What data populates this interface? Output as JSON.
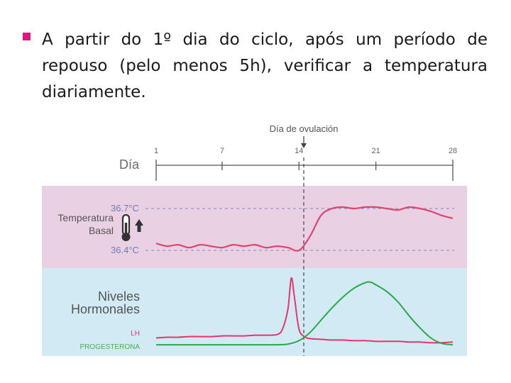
{
  "slide": {
    "bullet": "A partir do 1º dia do ciclo, após um período de repouso (pelo menos 5h), verificar a temperatura diariamente."
  },
  "colors": {
    "bullet": "#e5157f",
    "temp_band": "#ead0e3",
    "hormone_band": "#d1eaf3",
    "temperature_line": "#e0436b",
    "lh_line": "#e8336f",
    "progesterone_line": "#2aa84a",
    "reference_line": "#7f88c4",
    "axis_label": "#6f7bb8",
    "lh_label": "#e8336f",
    "progesterone_label": "#4caf50"
  },
  "figure": {
    "ovulation_label": "Día de ovulación",
    "day_label": "Día",
    "temp_label_line1": "Temperatura",
    "temp_label_line2": "Basal",
    "temp_high": "36.7°C",
    "temp_low": "36.4°C",
    "hormone_label_line1": "Niveles",
    "hormone_label_line2": "Hormonales",
    "lh_label": "LH",
    "progesterone_label": "PROGESTERONA",
    "thermometer_icon": "thermometer-up-icon"
  },
  "chart_data": {
    "type": "line",
    "x_axis": {
      "label": "Día",
      "ticks": [
        1,
        7,
        14,
        21,
        28
      ],
      "range": [
        1,
        28
      ]
    },
    "ovulation_day": 14,
    "series": [
      {
        "name": "Temperatura Basal",
        "unit": "°C",
        "reference_levels": [
          36.7,
          36.4
        ],
        "x": [
          1,
          2,
          3,
          4,
          5,
          6,
          7,
          8,
          9,
          10,
          11,
          12,
          13,
          14,
          15,
          16,
          17,
          18,
          19,
          20,
          21,
          22,
          23,
          24,
          25,
          26,
          27,
          28
        ],
        "values": [
          36.45,
          36.43,
          36.44,
          36.42,
          36.44,
          36.43,
          36.42,
          36.44,
          36.43,
          36.44,
          36.42,
          36.43,
          36.42,
          36.4,
          36.5,
          36.65,
          36.7,
          36.71,
          36.7,
          36.71,
          36.71,
          36.7,
          36.69,
          36.71,
          36.7,
          36.68,
          36.65,
          36.63
        ]
      },
      {
        "name": "LH",
        "x": [
          1,
          2,
          3,
          4,
          5,
          6,
          7,
          8,
          9,
          10,
          11,
          12,
          12.5,
          13,
          13.3,
          13.6,
          14,
          14.5,
          15,
          16,
          17,
          18,
          19,
          20,
          21,
          22,
          23,
          24,
          25,
          26,
          27,
          28
        ],
        "values": [
          0.12,
          0.13,
          0.13,
          0.14,
          0.14,
          0.14,
          0.15,
          0.15,
          0.15,
          0.16,
          0.16,
          0.17,
          0.25,
          0.55,
          1.0,
          0.7,
          0.25,
          0.14,
          0.11,
          0.1,
          0.09,
          0.09,
          0.08,
          0.08,
          0.07,
          0.07,
          0.07,
          0.06,
          0.06,
          0.05,
          0.05,
          0.06
        ]
      },
      {
        "name": "PROGESTERONA",
        "x": [
          1,
          3,
          5,
          7,
          9,
          11,
          12,
          13,
          14,
          15,
          16,
          17,
          18,
          19,
          20,
          20.5,
          21,
          22,
          23,
          24,
          25,
          26,
          27,
          28
        ],
        "values": [
          0.02,
          0.02,
          0.02,
          0.02,
          0.02,
          0.02,
          0.02,
          0.03,
          0.08,
          0.2,
          0.38,
          0.56,
          0.72,
          0.85,
          0.93,
          0.94,
          0.9,
          0.8,
          0.65,
          0.45,
          0.27,
          0.12,
          0.04,
          0.02
        ]
      }
    ]
  }
}
